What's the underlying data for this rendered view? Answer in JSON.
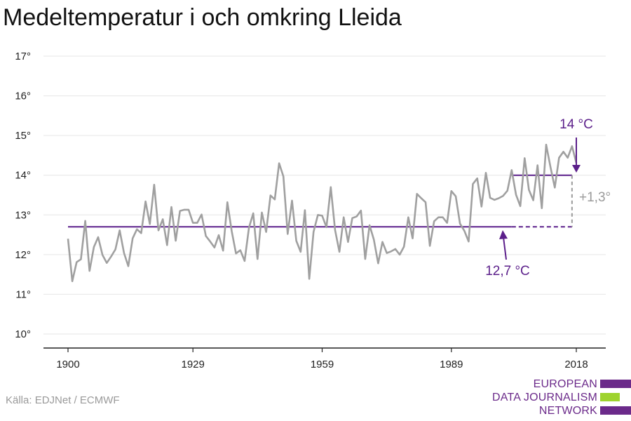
{
  "title": "Medeltemperatur i och omkring Lleida",
  "source": "Källa: EDJNet / ECMWF",
  "brand": {
    "lines": [
      "EUROPEAN",
      "DATA JOURNALISM",
      "NETWORK"
    ],
    "colors": {
      "text": "#6b2a8a",
      "bar_purple": "#6b2a8a",
      "bar_green": "#9ed32e"
    }
  },
  "colors": {
    "line": "#a0a0a0",
    "baseline": "#5b1f8a",
    "increase": "#9a9a9a",
    "grid": "#e6e6e6"
  },
  "annotations": {
    "recent_avg": "14 °C",
    "baseline_avg": "12,7 °C",
    "difference": "+1,3°"
  },
  "chart_data": {
    "type": "line",
    "title": "Medeltemperatur i och omkring Lleida",
    "xlabel": "",
    "ylabel": "",
    "xlim": [
      1900,
      2018
    ],
    "ylim": [
      10,
      17
    ],
    "x_ticks": [
      1900,
      1929,
      1959,
      1989,
      2018
    ],
    "x_tick_labels": [
      "1900",
      "1929",
      "1959",
      "1989",
      "2018"
    ],
    "y_ticks": [
      10,
      11,
      12,
      13,
      14,
      15,
      16,
      17
    ],
    "y_tick_labels": [
      "10°",
      "11°",
      "12°",
      "13°",
      "14°",
      "15°",
      "16°",
      "17°"
    ],
    "grid": true,
    "series": [
      {
        "x": [
          1900,
          1901,
          1902,
          1903,
          1904,
          1905,
          1906,
          1907,
          1908,
          1909,
          1910,
          1911,
          1912,
          1913,
          1914,
          1915,
          1916,
          1917,
          1918,
          1919,
          1920,
          1921,
          1922,
          1923,
          1924,
          1925,
          1926,
          1927,
          1928,
          1929,
          1930,
          1931,
          1932,
          1933,
          1934,
          1935,
          1936,
          1937,
          1938,
          1939,
          1940,
          1941,
          1942,
          1943,
          1944,
          1945,
          1946,
          1947,
          1948,
          1949,
          1950,
          1951,
          1952,
          1953,
          1954,
          1955,
          1956,
          1957,
          1958,
          1959,
          1960,
          1961,
          1962,
          1963,
          1964,
          1965,
          1966,
          1967,
          1968,
          1969,
          1970,
          1971,
          1972,
          1973,
          1974,
          1975,
          1976,
          1977,
          1978,
          1979,
          1980,
          1981,
          1982,
          1983,
          1984,
          1985,
          1986,
          1987,
          1988,
          1989,
          1990,
          1991,
          1992,
          1993,
          1994,
          1995,
          1996,
          1997,
          1998,
          1999,
          2000,
          2001,
          2002,
          2003,
          2004,
          2005,
          2006,
          2007,
          2008,
          2009,
          2010,
          2011,
          2012,
          2013,
          2014,
          2015,
          2016,
          2017,
          2018
        ],
        "values": [
          12.4,
          11.33,
          11.81,
          11.88,
          12.85,
          11.59,
          12.19,
          12.44,
          11.99,
          11.79,
          11.95,
          12.13,
          12.61,
          12.04,
          11.71,
          12.41,
          12.64,
          12.54,
          13.34,
          12.77,
          13.76,
          12.61,
          12.89,
          12.24,
          13.2,
          12.35,
          13.1,
          13.13,
          13.13,
          12.8,
          12.8,
          13.01,
          12.47,
          12.33,
          12.18,
          12.49,
          12.1,
          13.32,
          12.59,
          12.03,
          12.11,
          11.84,
          12.68,
          13.04,
          11.89,
          13.06,
          12.57,
          13.49,
          13.39,
          14.3,
          13.97,
          12.52,
          13.36,
          12.35,
          12.07,
          13.12,
          11.39,
          12.57,
          13.0,
          12.98,
          12.69,
          13.7,
          12.62,
          12.07,
          12.94,
          12.32,
          12.92,
          12.96,
          13.11,
          11.89,
          12.74,
          12.38,
          11.78,
          12.32,
          12.04,
          12.08,
          12.14,
          12.0,
          12.2,
          12.94,
          12.41,
          13.53,
          13.42,
          13.32,
          12.22,
          12.84,
          12.94,
          12.94,
          12.8,
          13.6,
          13.47,
          12.78,
          12.6,
          12.33,
          13.78,
          13.92,
          13.21,
          14.06,
          13.43,
          13.38,
          13.42,
          13.48,
          13.61,
          14.13,
          13.51,
          13.22,
          14.43,
          13.63,
          13.37,
          14.25,
          13.17,
          14.77,
          14.21,
          13.69,
          14.44,
          14.59,
          14.44,
          14.73,
          14.31
        ]
      }
    ],
    "reference_lines": [
      {
        "label": "12,7 °C",
        "value": 12.7,
        "x_start": 1900,
        "x_end": 2003,
        "dashed_to": 2017
      },
      {
        "label": "14 °C",
        "value": 14.0,
        "x_start": 2003,
        "x_end": 2017
      }
    ]
  }
}
